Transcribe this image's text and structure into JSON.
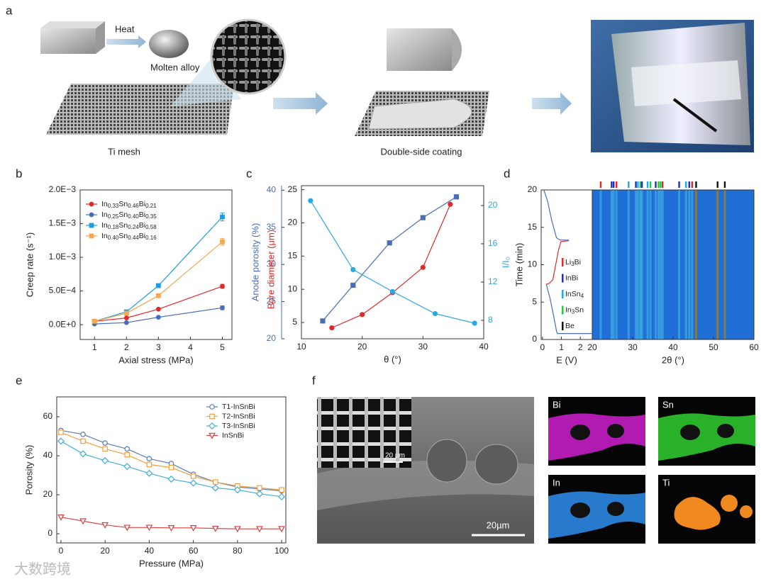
{
  "panel_labels": [
    "a",
    "b",
    "c",
    "d",
    "e",
    "f"
  ],
  "panel_a": {
    "heat": "Heat",
    "molten_alloy": "Molten alloy",
    "ti_mesh": "Ti mesh",
    "coating": "Double-side coating"
  },
  "panel_f": {
    "inset_scale": "20 µm",
    "scale": "20µm",
    "maps": [
      "Bi",
      "Sn",
      "In",
      "Ti"
    ],
    "map_colors": [
      "#d020d0",
      "#30d030",
      "#2f8ff0",
      "#f08a20"
    ]
  },
  "watermark": "大数跨境",
  "chart_data": [
    {
      "type": "line",
      "x": [
        1,
        2,
        3,
        5
      ],
      "xlim": [
        0.55,
        5.3
      ],
      "xticks": [
        1,
        2,
        3,
        4,
        5
      ],
      "ylim": [
        -0.00022,
        0.002
      ],
      "yticks": [
        {
          "value": 0,
          "label": "0.0E+0"
        },
        {
          "value": 0.0005,
          "label": "5.0E−4"
        },
        {
          "value": 0.001,
          "label": "1.0E−3"
        },
        {
          "value": 0.0015,
          "label": "1.5E−3"
        },
        {
          "value": 0.002,
          "label": "2.0E−3"
        }
      ],
      "x_label": "Axial stress (MPa)",
      "y_label": "Creep rate (s⁻¹)",
      "legend": "upper left",
      "series": [
        {
          "name": "In0.33Sn0.46Bi0.21",
          "color": "#e02a2a",
          "marker": "circle",
          "values": [
            5e-05,
            0.0001,
            0.00023,
            0.00057
          ],
          "errors": [
            5e-06,
            1e-05,
            1e-05,
            3e-05
          ]
        },
        {
          "name": "In0.25Sn0.40Bi0.35",
          "color": "#4a6db5",
          "marker": "circle",
          "values": [
            1e-05,
            3e-05,
            0.00011,
            0.00025
          ],
          "errors": [
            5e-06,
            5e-06,
            1e-05,
            3e-05
          ]
        },
        {
          "name": "In0.18Sn0.24Bi0.58",
          "color": "#1e9ee0",
          "marker": "square",
          "values": [
            5e-05,
            0.00019,
            0.00058,
            0.0016
          ],
          "errors": [
            5e-06,
            1e-05,
            2e-05,
            6e-05
          ]
        },
        {
          "name": "In0.40Sn0.44Bi0.16",
          "color": "#f4a850",
          "marker": "square",
          "values": [
            5e-05,
            0.00017,
            0.00043,
            0.00123
          ],
          "errors": [
            5e-06,
            1e-05,
            1e-05,
            5e-05
          ]
        }
      ]
    },
    {
      "type": "multi_axis",
      "xlim": [
        10,
        40
      ],
      "xticks": [
        10,
        20,
        30,
        40
      ],
      "x_label": "θ (°)",
      "ylim": [
        20,
        40.6
      ],
      "yticks": [
        20,
        25,
        30,
        35,
        40
      ],
      "y_label": "Anode porosity (%)",
      "y2lim": [
        2.55,
        25.6
      ],
      "y2ticks": [
        5,
        10,
        15,
        20,
        25
      ],
      "y2_label": "Bore diameter (μm)",
      "y3lim": [
        6.07,
        22.07
      ],
      "y3ticks": [
        8,
        12,
        16,
        20
      ],
      "y3_label": "I/I₀",
      "series": [
        {
          "color": "#4a6db5",
          "marker": "square",
          "axis": "y",
          "x": [
            13.5,
            18.5,
            24.5,
            30,
            35.5
          ],
          "values": [
            22.4,
            27.2,
            32.9,
            36.3,
            39.1
          ]
        },
        {
          "color": "#e02a2a",
          "marker": "circle",
          "axis": "y2",
          "x": [
            15,
            20,
            25,
            30,
            34.5
          ],
          "values": [
            4.2,
            6.2,
            9.5,
            13.3,
            22.8
          ]
        },
        {
          "color": "#2aa8e0",
          "marker": "circle",
          "axis": "y3",
          "x": [
            11.5,
            18.5,
            25,
            32,
            38.5
          ],
          "values": [
            20.5,
            13.3,
            11,
            8.7,
            7.7
          ]
        }
      ]
    },
    {
      "type": "operando",
      "xlim": [
        -0.07,
        2.63
      ],
      "xticks": [
        0,
        1,
        2
      ],
      "x_label": "E (V)",
      "ylim": [
        0,
        20
      ],
      "yticks": [
        0,
        5,
        10,
        15,
        20
      ],
      "y_label": "Time (min)",
      "x2lim": [
        20,
        60
      ],
      "x2ticks": [
        20,
        30,
        40,
        50,
        60
      ],
      "x2_label": "2θ (°)",
      "series": [
        {
          "color": "#4a6db5",
          "x": [
            0.07,
            0.26,
            0.48,
            0.74,
            0.93,
            1.4,
            null,
            0.2,
            0.4,
            0.6,
            0.75,
            0.8,
            2.6
          ],
          "values": [
            20,
            18.6,
            16,
            13.6,
            13.3,
            13.3,
            null,
            7.4,
            5.5,
            3,
            1,
            0.8,
            0.8
          ]
        },
        {
          "color": "#e02a2a",
          "x": [
            1.4,
            0.98,
            0.85,
            0.7,
            0.55,
            0.35,
            0.2
          ],
          "values": [
            13.2,
            13.1,
            12,
            10,
            8,
            7.5,
            7.4
          ]
        }
      ],
      "phases": [
        {
          "name": "Li3Bi",
          "color": "#e02a2a",
          "positions": [
            22.1,
            26,
            37.4,
            44.7
          ]
        },
        {
          "name": "InBi",
          "color": "#2030b0",
          "positions": [
            24.8,
            25.3,
            30.8,
            32.3,
            35.7,
            41.5,
            44
          ]
        },
        {
          "name": "InSn4",
          "color": "#20a8e8",
          "positions": [
            29,
            31.3,
            33.7,
            43.2
          ]
        },
        {
          "name": "In3Sn",
          "color": "#30c040",
          "positions": [
            31.9,
            34.4,
            36.4,
            36.9
          ]
        },
        {
          "name": "Be",
          "color": "#111111",
          "positions": [
            45.7,
            51,
            52.8
          ]
        }
      ]
    },
    {
      "type": "line",
      "x": [
        0,
        10,
        20,
        30,
        40,
        50,
        60,
        70,
        80,
        90,
        100
      ],
      "xlim": [
        -1.9,
        101.9
      ],
      "xticks": [
        0,
        20,
        40,
        60,
        80,
        100
      ],
      "ylim": [
        -4.7,
        70.2
      ],
      "yticks": [
        0,
        20,
        40,
        60
      ],
      "x_label": "Pressure (MPa)",
      "y_label": "Porosity (%)",
      "legend": "upper right",
      "marker_fill": "none",
      "series": [
        {
          "name": "T1-InSnBi",
          "color": "#5a7db5",
          "marker": "circle",
          "values": [
            53,
            51,
            46.5,
            43.5,
            38.5,
            36,
            30.5,
            26.5,
            24,
            23,
            22
          ]
        },
        {
          "name": "T2-InSnBi",
          "color": "#f0a040",
          "marker": "square",
          "values": [
            52,
            47.5,
            43.5,
            40.5,
            35.5,
            34,
            29.5,
            26.5,
            24.5,
            23.5,
            22.5
          ]
        },
        {
          "name": "T3-InSnBi",
          "color": "#40b0d8",
          "marker": "diamond",
          "values": [
            47.5,
            41,
            37.5,
            34.5,
            31,
            28,
            26,
            23.5,
            22.5,
            20.5,
            19
          ]
        },
        {
          "name": "InSnBi",
          "color": "#d94040",
          "marker": "triangle-down",
          "values": [
            8.5,
            6.5,
            4.5,
            3.2,
            3.2,
            3,
            3,
            2.7,
            2.5,
            2.5,
            2.5
          ]
        }
      ]
    }
  ]
}
